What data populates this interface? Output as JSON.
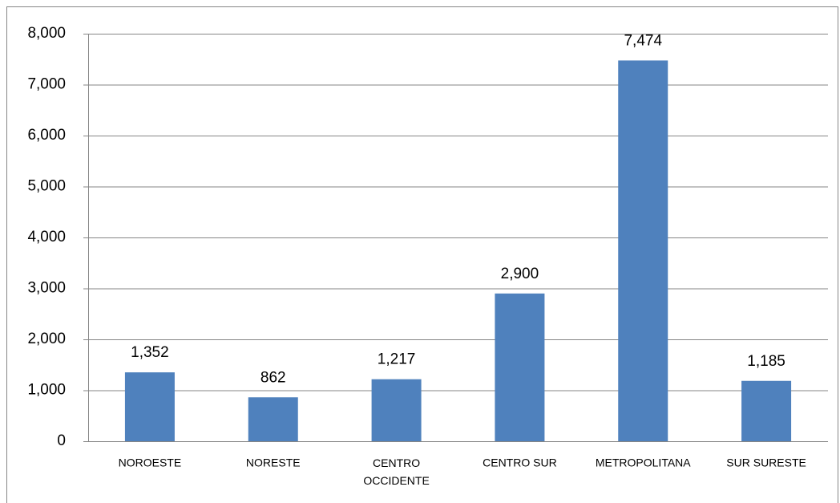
{
  "chart_data": {
    "type": "bar",
    "categories": [
      "NOROESTE",
      "NORESTE",
      "CENTRO OCCIDENTE",
      "CENTRO SUR",
      "METROPOLITANA",
      "SUR SURESTE"
    ],
    "values": [
      1352,
      862,
      1217,
      2900,
      7474,
      1185
    ],
    "value_labels": [
      "1,352",
      "862",
      "1,217",
      "2,900",
      "7,474",
      "1,185"
    ],
    "color": "#4f81bd",
    "ylim": [
      0,
      8000
    ],
    "yticks": [
      0,
      {
        "value": 1000,
        "label": "1,000"
      },
      {
        "value": 2000,
        "label": "2,000"
      },
      {
        "value": 3000,
        "label": "3,000"
      },
      {
        "value": 4000,
        "label": "4,000"
      },
      {
        "value": 5000,
        "label": "5,000"
      },
      {
        "value": 6000,
        "label": "6,000"
      },
      {
        "value": 7000,
        "label": "7,000"
      },
      {
        "value": 8000,
        "label": "8,000"
      }
    ],
    "grid": true
  }
}
